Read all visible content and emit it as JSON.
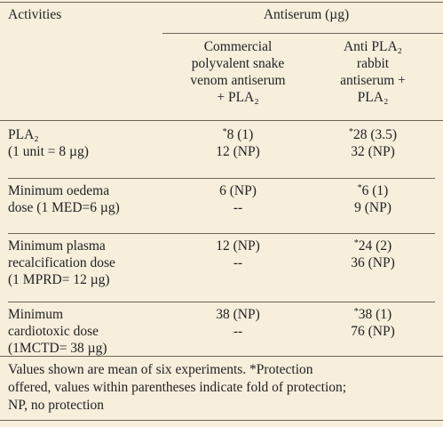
{
  "table": {
    "header": {
      "activities": "Activities",
      "group": "Antiserum (µg)",
      "columns": [
        [
          "Commercial",
          "polyvalent snake",
          "venom antiserum",
          "+ PLA₂"
        ],
        [
          "Anti PLA₂",
          "rabbit",
          "antiserum +",
          "PLA₂"
        ]
      ]
    },
    "rows": [
      [
        [
          "PLA₂",
          "(1 unit = 8 µg)"
        ],
        [
          "*8 (1)",
          "12 (NP)"
        ],
        [
          "*28 (3.5)",
          "32 (NP)"
        ]
      ],
      [
        [
          "Minimum oedema",
          "dose (1 MED=6 µg)"
        ],
        [
          "6 (NP)",
          "--"
        ],
        [
          "*6 (1)",
          "9 (NP)"
        ]
      ],
      [
        [
          "Minimum plasma",
          "recalcification dose",
          "(1 MPRD= 12 µg)"
        ],
        [
          "12 (NP)",
          "--"
        ],
        [
          "*24 (2)",
          "36 (NP)"
        ]
      ],
      [
        [
          "Minimum",
          "cardiotoxic dose",
          "(1MCTD= 38 µg)"
        ],
        [
          "38 (NP)",
          "--"
        ],
        [
          "*38 (1)",
          "76 (NP)"
        ]
      ]
    ],
    "footnote": [
      "Values shown are mean of six experiments. *Protection",
      "offered, values within parentheses indicate fold of protection;",
      "NP, no protection"
    ]
  }
}
